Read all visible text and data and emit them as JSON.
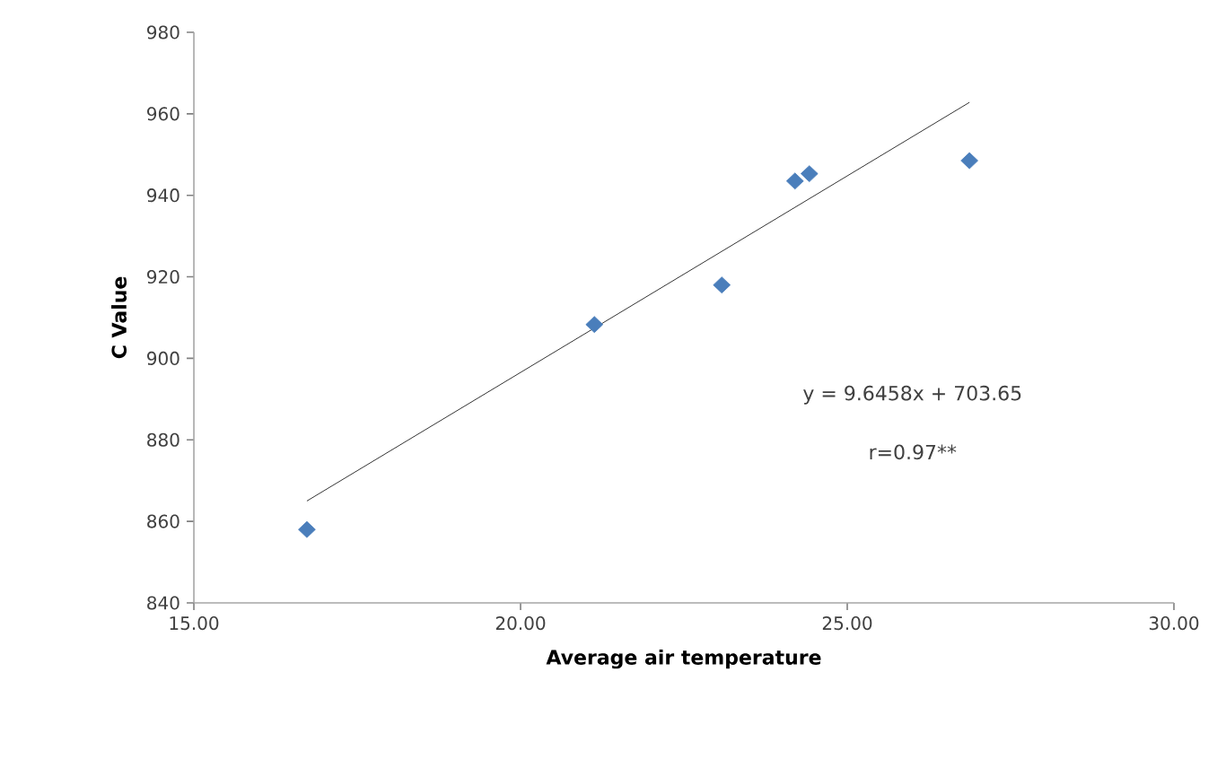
{
  "chart_data": {
    "type": "scatter",
    "xlabel": "Average   air   temperature",
    "ylabel": "C   Value",
    "xlim": [
      15,
      30
    ],
    "xticks": [
      {
        "value": 15,
        "label": "15.00"
      },
      {
        "value": 20,
        "label": "20.00"
      },
      {
        "value": 25,
        "label": "25.00"
      },
      {
        "value": 30,
        "label": "30.00"
      }
    ],
    "ylim": [
      840,
      980
    ],
    "yticks": [
      840,
      860,
      880,
      900,
      920,
      940,
      960,
      980
    ],
    "grid": false,
    "marker": "diamond",
    "series": [
      {
        "color": "#4a7ebb",
        "x": [
          16.73,
          21.13,
          23.08,
          24.2,
          24.42,
          26.87
        ],
        "values": [
          858,
          908.3,
          918,
          943.5,
          945.3,
          948.5
        ]
      },
      {
        "type": "line",
        "color": "#000000",
        "x": [
          16.73,
          26.87
        ],
        "values": [
          865.0,
          962.8
        ],
        "marker": "none",
        "line_style": "solid"
      }
    ],
    "annotations": [
      "y = 9.6458x  + 703.65",
      "r=0.97**"
    ]
  }
}
